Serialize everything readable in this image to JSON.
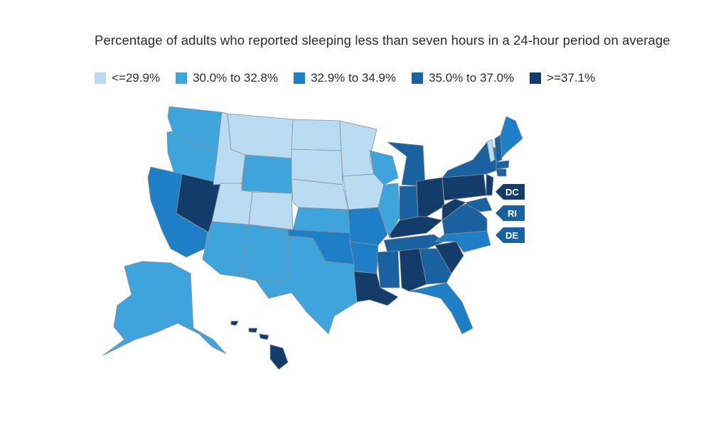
{
  "title": "Percentage of adults who reported sleeping less than seven hours in a 24-hour period on average",
  "legend": [
    {
      "label": "<=29.9%",
      "color": "#b9dcf2"
    },
    {
      "label": "30.0% to 32.8%",
      "color": "#3ea4db"
    },
    {
      "label": "32.9% to 34.9%",
      "color": "#1f7fc6"
    },
    {
      "label": "35.0% to 37.0%",
      "color": "#1a61a0"
    },
    {
      "label": ">=37.1%",
      "color": "#133c6b"
    }
  ],
  "small_state_tags": [
    {
      "label": "DC",
      "bin": 4
    },
    {
      "label": "RI",
      "bin": 3
    },
    {
      "label": "DE",
      "bin": 3
    }
  ],
  "state_bins": {
    "WA": 1,
    "OR": 1,
    "CA": 2,
    "NV": 4,
    "ID": 0,
    "MT": 0,
    "WY": 1,
    "UT": 0,
    "CO": 0,
    "AZ": 1,
    "NM": 1,
    "ND": 0,
    "SD": 0,
    "NE": 0,
    "KS": 1,
    "OK": 2,
    "TX": 1,
    "MN": 0,
    "IA": 0,
    "MO": 2,
    "AR": 2,
    "LA": 4,
    "WI": 1,
    "IL": 1,
    "MI": 3,
    "IN": 3,
    "OH": 4,
    "KY": 4,
    "TN": 3,
    "MS": 3,
    "AL": 4,
    "GA": 3,
    "FL": 2,
    "SC": 4,
    "NC": 2,
    "VA": 3,
    "WV": 4,
    "PA": 4,
    "NY": 3,
    "NJ": 4,
    "MD": 3,
    "ME": 2,
    "NH": 3,
    "VT": 0,
    "MA": 3,
    "CT": 3,
    "AK": 1,
    "HI": 4
  }
}
